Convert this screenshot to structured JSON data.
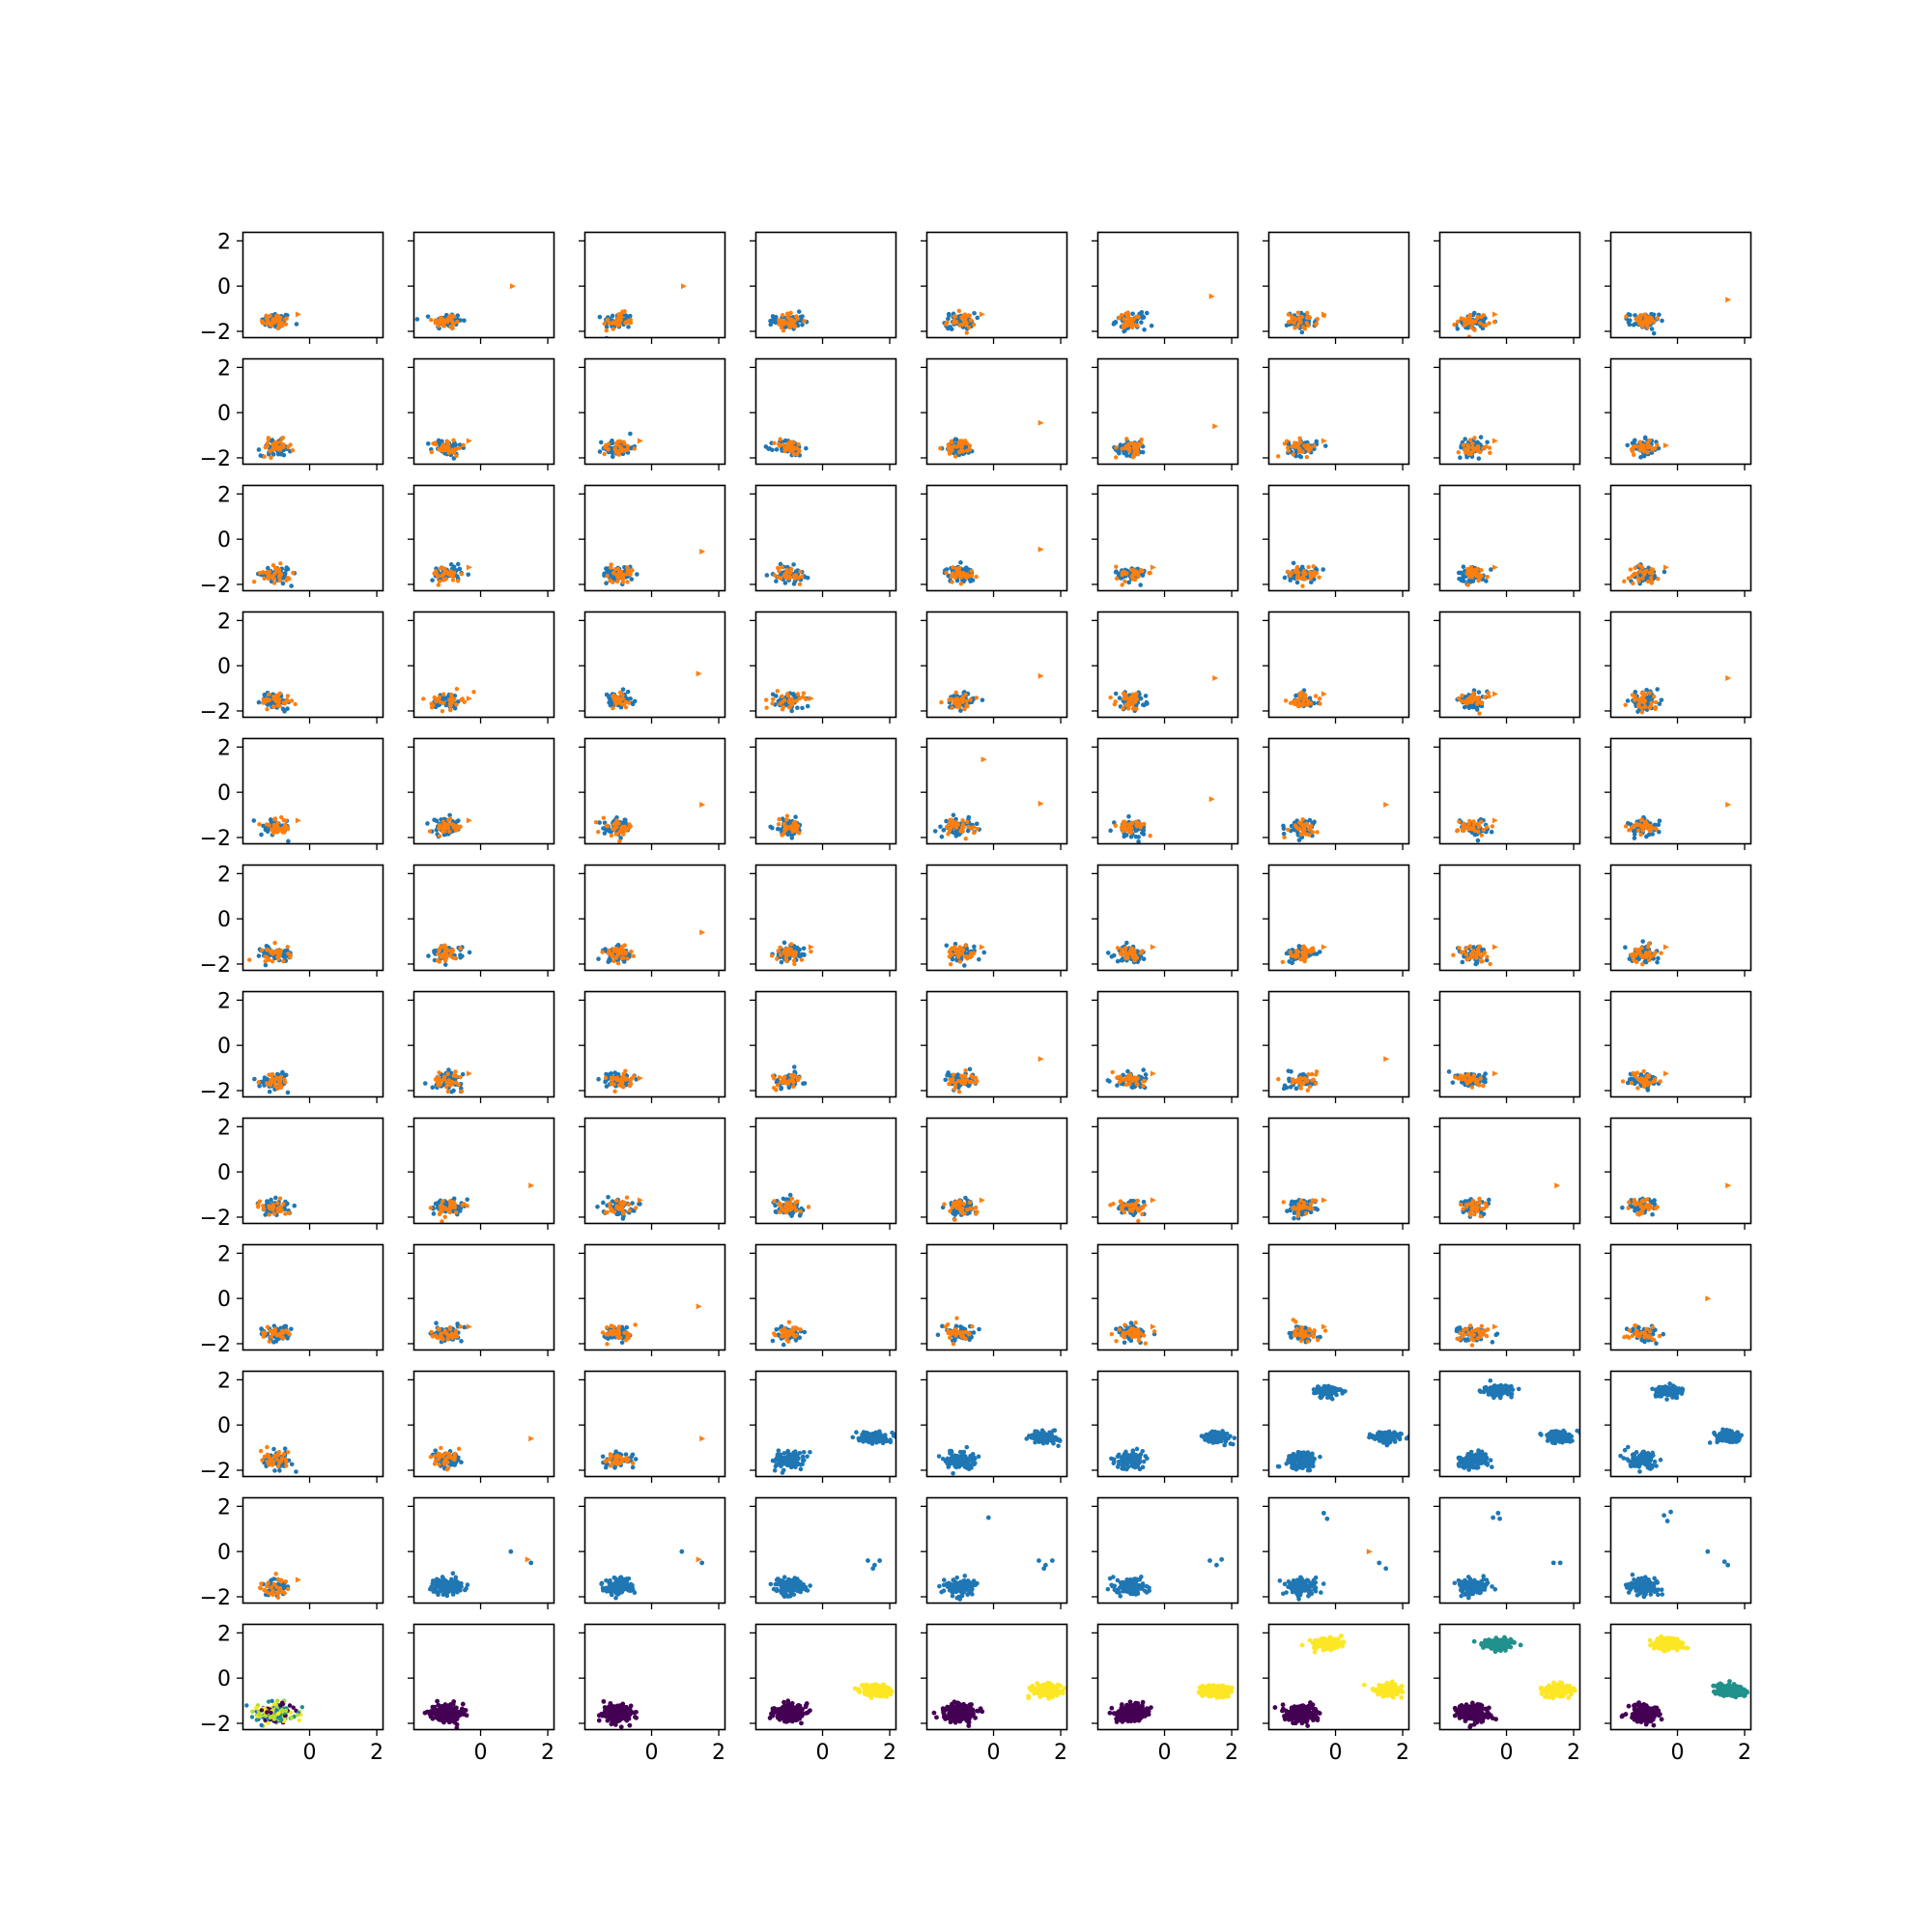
{
  "chart_data": {
    "type": "scatter",
    "grid": {
      "rows": 12,
      "cols": 9
    },
    "shared_x": true,
    "shared_y": true,
    "xlim": [
      -2.0,
      2.2
    ],
    "ylim": [
      -2.3,
      2.4
    ],
    "x_ticks": [
      0,
      2
    ],
    "x_tick_labels": [
      "0",
      "2"
    ],
    "y_ticks": [
      2,
      0,
      -2
    ],
    "y_tick_labels": [
      "2",
      "0",
      "−2"
    ],
    "grid_lines": false,
    "legend": "none",
    "colors": {
      "blue": "#1f77b4",
      "orange": "#ff7f0e",
      "purple": "#440154",
      "teal": "#21918c",
      "yellow": "#fde725",
      "lime": "#b5de2b"
    },
    "clusters": {
      "A": {
        "center": [
          -1.0,
          -1.55
        ],
        "spread": [
          0.22,
          0.18
        ]
      },
      "B": {
        "center": [
          1.55,
          -0.55
        ],
        "spread": [
          0.2,
          0.12
        ]
      },
      "C": {
        "center": [
          -0.25,
          1.5
        ],
        "spread": [
          0.2,
          0.12
        ]
      }
    },
    "panels": [
      [
        {
          "o": "-0.35,-1.25"
        },
        {
          "o": "0.95,0.0"
        },
        {
          "o": "0.95,0.0"
        },
        {
          "o": ""
        },
        {
          "o": "-0.35,-1.25"
        },
        {
          "o": "1.4,-0.45"
        },
        {
          "o": "-0.35,-1.25"
        },
        {
          "o": "-0.35,-1.25"
        },
        {
          "o": "1.5,-0.6"
        }
      ],
      [
        {
          "o": ""
        },
        {
          "o": "-0.35,-1.25"
        },
        {
          "o": "-0.35,-1.25"
        },
        {
          "o": ""
        },
        {
          "o": "1.4,-0.45"
        },
        {
          "o": "1.5,-0.6"
        },
        {
          "o": "-0.35,-1.25"
        },
        {
          "o": "-0.35,-1.25"
        },
        {
          "o": "-0.35,-1.45"
        }
      ],
      [
        {
          "o": ""
        },
        {
          "o": "-0.35,-1.25"
        },
        {
          "o": "1.5,-0.55"
        },
        {
          "o": ""
        },
        {
          "o": "1.4,-0.45"
        },
        {
          "o": "-0.35,-1.25"
        },
        {
          "o": ""
        },
        {
          "o": "-0.35,-1.25"
        },
        {
          "o": "-0.35,-1.25"
        }
      ],
      [
        {
          "o": ""
        },
        {
          "o": "-0.35,-1.45"
        },
        {
          "o": "1.4,-0.35"
        },
        {
          "o": "-0.35,-1.45"
        },
        {
          "o": "1.4,-0.45"
        },
        {
          "o": "1.5,-0.55"
        },
        {
          "o": "-0.35,-1.25"
        },
        {
          "o": "-0.35,-1.25"
        },
        {
          "o": "1.5,-0.55"
        }
      ],
      [
        {
          "o": "-0.35,-1.25"
        },
        {
          "o": "-0.35,-1.25"
        },
        {
          "o": "1.5,-0.55"
        },
        {
          "o": ""
        },
        {
          "o": "-0.3,1.45;1.4,-0.5"
        },
        {
          "o": "1.4,-0.3"
        },
        {
          "o": "1.5,-0.55"
        },
        {
          "o": "-0.35,-1.25"
        },
        {
          "o": "1.5,-0.55"
        }
      ],
      [
        {
          "o": ""
        },
        {
          "o": ""
        },
        {
          "o": "1.5,-0.6"
        },
        {
          "o": "-0.35,-1.25"
        },
        {
          "o": "-0.35,-1.25"
        },
        {
          "o": "-0.35,-1.25"
        },
        {
          "o": "-0.35,-1.25"
        },
        {
          "o": "-0.35,-1.25"
        },
        {
          "o": "-0.35,-1.25"
        }
      ],
      [
        {
          "o": ""
        },
        {
          "o": "-0.35,-1.25"
        },
        {
          "o": "-0.35,-1.45"
        },
        {
          "o": ""
        },
        {
          "o": "1.4,-0.6"
        },
        {
          "o": "-0.35,-1.25"
        },
        {
          "o": "1.5,-0.6"
        },
        {
          "o": "-0.35,-1.25"
        },
        {
          "o": "-0.35,-1.25"
        }
      ],
      [
        {
          "o": ""
        },
        {
          "o": "1.5,-0.6"
        },
        {
          "o": "-0.35,-1.25"
        },
        {
          "o": ""
        },
        {
          "o": "-0.35,-1.25"
        },
        {
          "o": "-0.35,-1.25"
        },
        {
          "o": "-0.35,-1.25"
        },
        {
          "o": "1.5,-0.6"
        },
        {
          "o": "1.5,-0.6"
        }
      ],
      [
        {
          "o": ""
        },
        {
          "o": "-0.35,-1.25"
        },
        {
          "o": "1.4,-0.35"
        },
        {
          "o": ""
        },
        {
          "o": ""
        },
        {
          "o": "-0.35,-1.25"
        },
        {
          "o": "-0.35,-1.25"
        },
        {
          "o": "-0.35,-1.25"
        },
        {
          "o": "0.9,0.0"
        }
      ],
      [
        {
          "o": ""
        },
        {
          "o": "1.5,-0.6"
        },
        {
          "o": "1.5,-0.6"
        },
        {
          "o": "",
          "c": "AB"
        },
        {
          "o": "",
          "c": "AB"
        },
        {
          "o": "",
          "c": "AB"
        },
        {
          "o": "",
          "c": "ABC"
        },
        {
          "o": "",
          "c": "ABC"
        },
        {
          "o": "",
          "c": "ABC"
        }
      ],
      [
        {
          "o": "-0.35,-1.25"
        },
        {
          "o": "1.4,-0.35",
          "c": "A",
          "sparse": "0.9,0.0;1.5,-0.5"
        },
        {
          "o": "1.4,-0.35",
          "c": "A",
          "sparse": "0.9,0.0;1.5,-0.5"
        },
        {
          "o": "",
          "c": "A",
          "sparse": "1.35,-0.4;1.55,-0.6;1.7,-0.4;1.5,-0.75"
        },
        {
          "o": "",
          "c": "A",
          "sparse": "-0.15,1.5;1.35,-0.4;1.55,-0.6;1.75,-0.4;1.5,-0.75"
        },
        {
          "o": "",
          "c": "A",
          "sparse": "1.35,-0.4;1.55,-0.6;1.7,-0.35"
        },
        {
          "o": "1.0,0.0",
          "c": "A",
          "sparse": "-0.35,1.7;-0.25,1.45;1.3,-0.5;1.5,-0.75"
        },
        {
          "o": "",
          "c": "A",
          "sparse": "-0.4,1.5;-0.25,1.7;-0.2,1.45;1.4,-0.5;1.6,-0.5"
        },
        {
          "o": "",
          "c": "A",
          "sparse": "-0.4,1.6;-0.2,1.75;-0.3,1.35;0.9,0.0;1.4,-0.45;1.5,-0.6"
        }
      ],
      [
        {
          "mode": "mixed"
        },
        {
          "mode": "cls",
          "c": "P"
        },
        {
          "mode": "cls",
          "c": "P"
        },
        {
          "mode": "cls",
          "c": "PY"
        },
        {
          "mode": "cls",
          "c": "PY"
        },
        {
          "mode": "cls",
          "c": "PY"
        },
        {
          "mode": "cls",
          "c": "PYY"
        },
        {
          "mode": "cls",
          "c": "PYT"
        },
        {
          "mode": "cls",
          "c": "PTY"
        }
      ]
    ]
  }
}
